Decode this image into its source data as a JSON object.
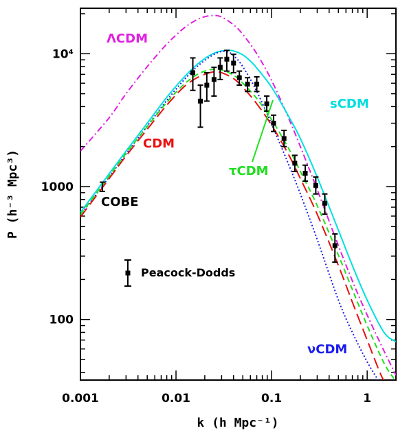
{
  "chart_data": {
    "type": "line",
    "xlabel": "k (h Mpc⁻¹)",
    "ylabel": "P (h⁻³ Mpc³)",
    "xscale": "log",
    "yscale": "log",
    "xlim": [
      0.001,
      2
    ],
    "ylim": [
      35,
      22000
    ],
    "x_ticks": [
      {
        "value": 0.001,
        "label": "0.001"
      },
      {
        "value": 0.01,
        "label": "0.01"
      },
      {
        "value": 0.1,
        "label": "0.1"
      },
      {
        "value": 1,
        "label": "1"
      }
    ],
    "y_ticks": [
      {
        "value": 100,
        "label": "100"
      },
      {
        "value": 1000,
        "label": "1000"
      },
      {
        "value": 10000,
        "label": "10⁴"
      }
    ],
    "series": [
      {
        "name": "ΛCDM",
        "color": "#e020e0",
        "style": "dashdot",
        "x": [
          0.001,
          0.002,
          0.003,
          0.005,
          0.008,
          0.012,
          0.016,
          0.02,
          0.025,
          0.03,
          0.04,
          0.05,
          0.07,
          0.1,
          0.15,
          0.2,
          0.3,
          0.5,
          0.7,
          1.0,
          1.5,
          2.0
        ],
        "y": [
          1850,
          3300,
          5000,
          8000,
          11800,
          15500,
          17800,
          19000,
          19400,
          18900,
          16500,
          14000,
          10000,
          6300,
          3300,
          2000,
          950,
          360,
          195,
          108,
          58,
          38
        ]
      },
      {
        "name": "sCDM",
        "color": "#00e0e0",
        "style": "solid",
        "x": [
          0.001,
          0.002,
          0.003,
          0.005,
          0.008,
          0.012,
          0.016,
          0.02,
          0.025,
          0.03,
          0.035,
          0.04,
          0.05,
          0.06,
          0.07,
          0.1,
          0.15,
          0.2,
          0.3,
          0.5,
          0.7,
          1.0,
          1.5,
          2.0
        ],
        "y": [
          640,
          1250,
          1850,
          3000,
          4700,
          6600,
          8100,
          9200,
          10100,
          10500,
          10600,
          10500,
          9800,
          8800,
          7800,
          5600,
          3400,
          2300,
          1180,
          470,
          255,
          140,
          80,
          68
        ]
      },
      {
        "name": "νCDM",
        "color": "#1a1aee",
        "style": "dotted",
        "x": [
          0.001,
          0.002,
          0.003,
          0.005,
          0.008,
          0.012,
          0.016,
          0.02,
          0.025,
          0.03,
          0.035,
          0.04,
          0.05,
          0.07,
          0.1,
          0.15,
          0.2,
          0.3,
          0.5,
          0.7,
          1.0,
          1.3
        ],
        "y": [
          610,
          1180,
          1760,
          2850,
          4450,
          6300,
          7800,
          8900,
          9900,
          10400,
          10300,
          9700,
          8000,
          5200,
          2950,
          1480,
          880,
          400,
          140,
          80,
          48,
          35
        ]
      },
      {
        "name": "CDM",
        "color": "#e81010",
        "style": "longdash",
        "x": [
          0.001,
          0.002,
          0.003,
          0.005,
          0.008,
          0.012,
          0.016,
          0.02,
          0.025,
          0.03,
          0.04,
          0.05,
          0.07,
          0.1,
          0.15,
          0.2,
          0.3,
          0.5,
          0.7,
          1.0,
          1.4,
          1.6
        ],
        "y": [
          590,
          1150,
          1700,
          2700,
          4100,
          5600,
          6500,
          7000,
          7300,
          7200,
          6500,
          5600,
          4200,
          2900,
          1750,
          1150,
          620,
          255,
          135,
          70,
          38,
          33
        ]
      },
      {
        "name": "τCDM",
        "color": "#20e020",
        "style": "dashed",
        "x": [
          0.001,
          0.002,
          0.003,
          0.005,
          0.008,
          0.012,
          0.016,
          0.02,
          0.025,
          0.03,
          0.04,
          0.05,
          0.07,
          0.1,
          0.15,
          0.2,
          0.3,
          0.5,
          0.7,
          1.0,
          1.5,
          1.9
        ],
        "y": [
          615,
          1200,
          1780,
          2830,
          4300,
          5850,
          6850,
          7400,
          7650,
          7550,
          6900,
          6000,
          4600,
          3200,
          1950,
          1300,
          720,
          305,
          168,
          90,
          47,
          36
        ]
      }
    ],
    "data_points": {
      "name": "Peacock-Dodds",
      "color": "#000000",
      "points": [
        {
          "k": 0.015,
          "P": 7200,
          "lo": 5300,
          "hi": 9300
        },
        {
          "k": 0.018,
          "P": 4400,
          "lo": 2800,
          "hi": 5800
        },
        {
          "k": 0.021,
          "P": 5800,
          "lo": 4400,
          "hi": 7200
        },
        {
          "k": 0.025,
          "P": 6400,
          "lo": 4800,
          "hi": 7900
        },
        {
          "k": 0.029,
          "P": 7900,
          "lo": 6400,
          "hi": 9300
        },
        {
          "k": 0.034,
          "P": 9100,
          "lo": 7400,
          "hi": 10600
        },
        {
          "k": 0.04,
          "P": 8500,
          "lo": 7200,
          "hi": 9900
        },
        {
          "k": 0.046,
          "P": 6600,
          "lo": 5800,
          "hi": 7400
        },
        {
          "k": 0.056,
          "P": 5900,
          "lo": 5200,
          "hi": 6600
        },
        {
          "k": 0.07,
          "P": 5900,
          "lo": 5200,
          "hi": 6700
        },
        {
          "k": 0.089,
          "P": 4200,
          "lo": 3700,
          "hi": 4800
        },
        {
          "k": 0.105,
          "P": 3000,
          "lo": 2600,
          "hi": 3450
        },
        {
          "k": 0.135,
          "P": 2300,
          "lo": 2000,
          "hi": 2650
        },
        {
          "k": 0.175,
          "P": 1500,
          "lo": 1300,
          "hi": 1720
        },
        {
          "k": 0.225,
          "P": 1260,
          "lo": 1100,
          "hi": 1450
        },
        {
          "k": 0.29,
          "P": 1020,
          "lo": 880,
          "hi": 1180
        },
        {
          "k": 0.36,
          "P": 750,
          "lo": 620,
          "hi": 880
        },
        {
          "k": 0.46,
          "P": 360,
          "lo": 270,
          "hi": 440
        }
      ]
    },
    "cobe": {
      "label": "COBE",
      "k": 0.0017,
      "P": 1000,
      "lo": 920,
      "hi": 1080
    },
    "legend": {
      "label": "Peacock-Dodds",
      "placement": "lower-left"
    }
  }
}
